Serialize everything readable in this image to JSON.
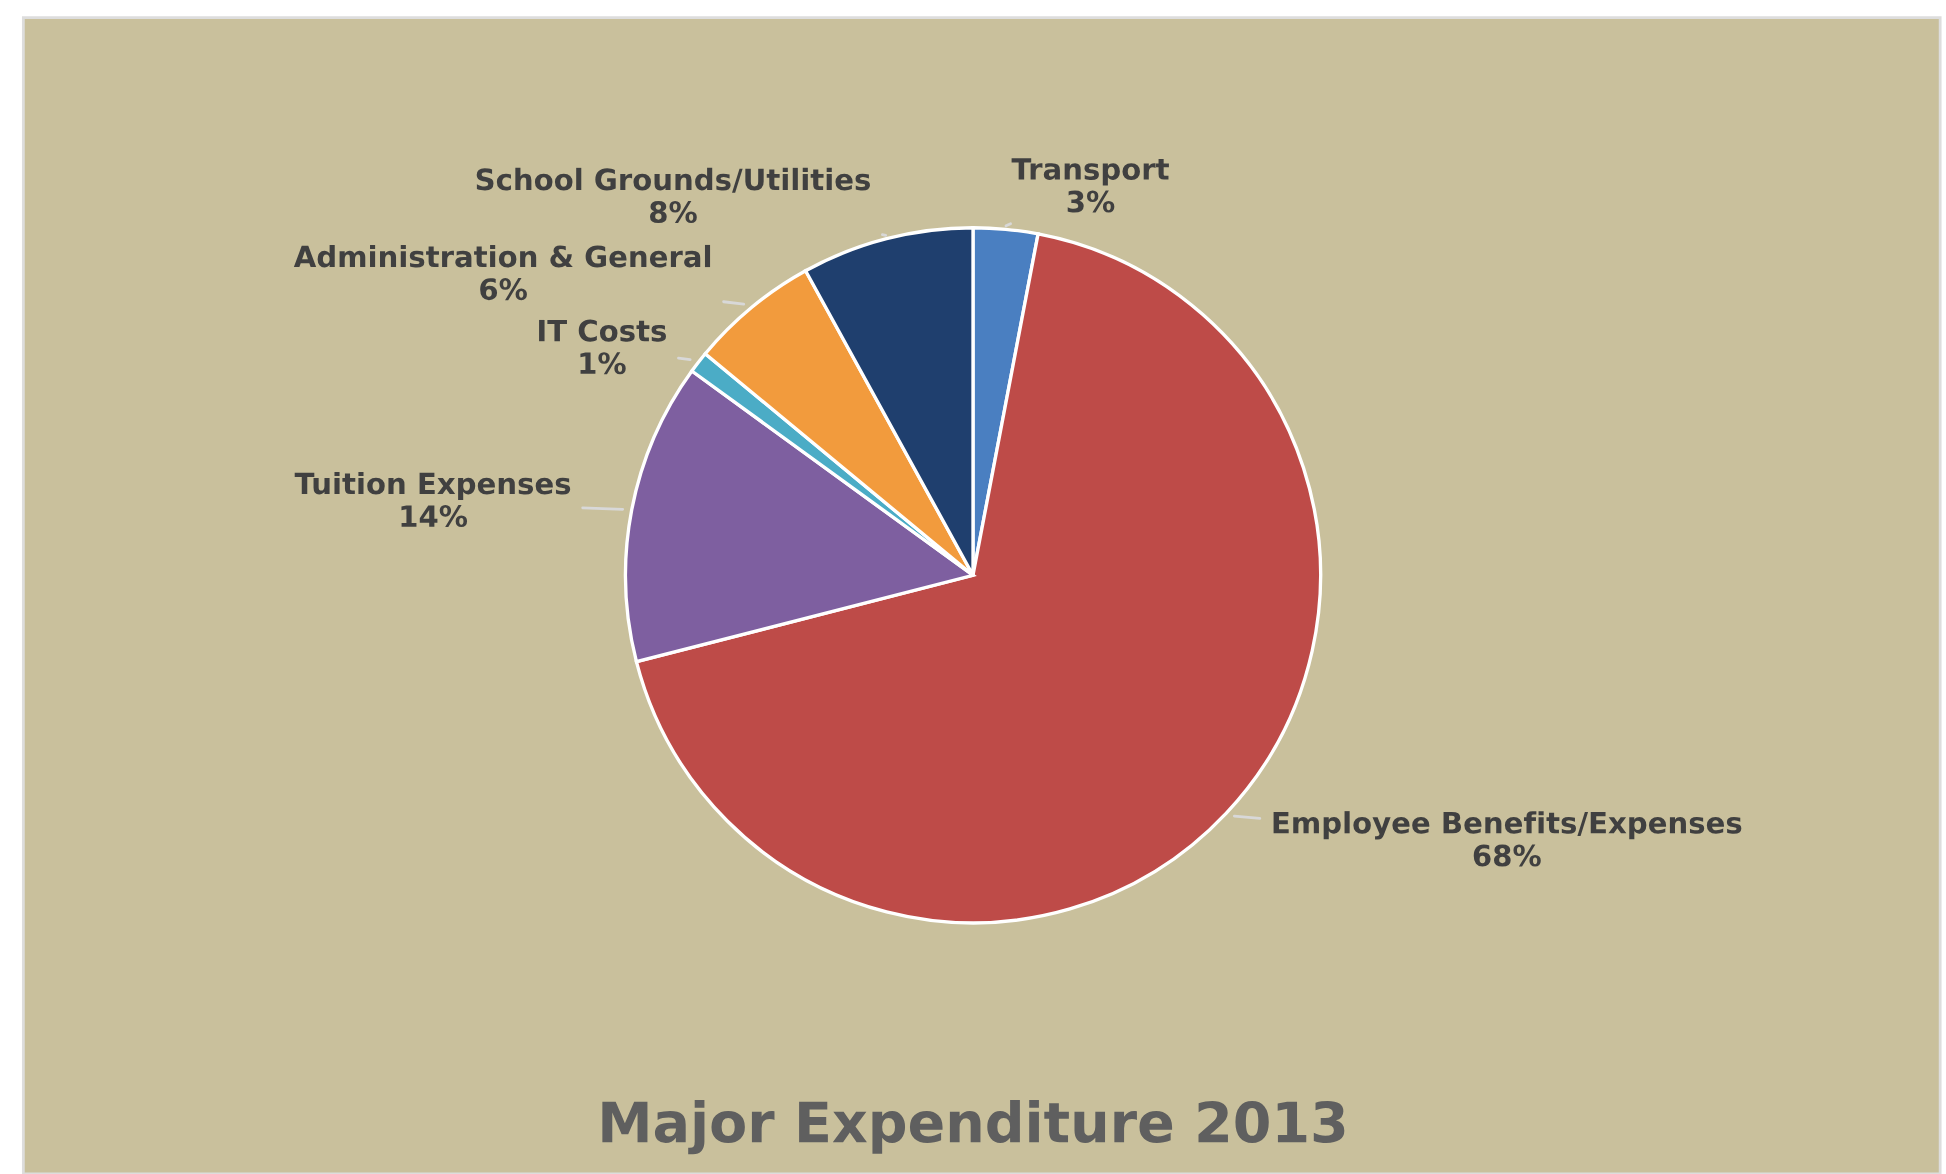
{
  "chart_data": {
    "type": "pie",
    "title": "Major Expenditure 2013",
    "categories": [
      "Transport",
      "Employee Benefits/Expenses",
      "Tuition Expenses",
      "IT Costs",
      "Administration & General",
      "School Grounds/Utilities"
    ],
    "values": [
      3,
      68,
      14,
      1,
      6,
      8
    ],
    "value_labels": [
      "3%",
      "68%",
      "14%",
      "1%",
      "6%",
      "8%"
    ],
    "colors": [
      "#4a7fc1",
      "#be4b48",
      "#7e5fa0",
      "#4bacc6",
      "#f29b3d",
      "#1f3f6e"
    ],
    "legend": false
  }
}
